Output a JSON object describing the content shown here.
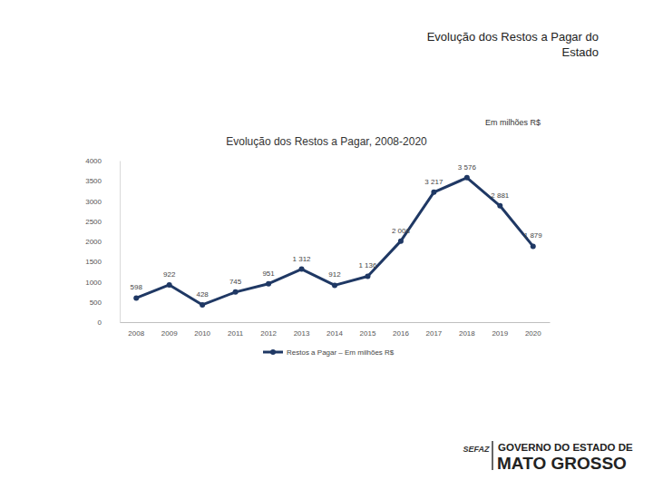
{
  "header": {
    "title_lines": [
      "Evolução dos Restos a Pagar do",
      "Estado"
    ],
    "unit_note": "Em milhões R$"
  },
  "chart_data": {
    "type": "line",
    "title": "Evolução dos Restos a Pagar, 2008-2020",
    "categories": [
      "2008",
      "2009",
      "2010",
      "2011",
      "2012",
      "2013",
      "2014",
      "2015",
      "2016",
      "2017",
      "2018",
      "2019",
      "2020"
    ],
    "series": [
      {
        "name": "Restos a Pagar – Em milhões R$",
        "color": "#1f3864",
        "marker": "circle",
        "line_style": "solid",
        "values": [
          598,
          922,
          428,
          745,
          951,
          1312,
          912,
          1136,
          2008,
          3217,
          3576,
          2881,
          1879
        ],
        "value_labels": [
          "598",
          "922",
          "428",
          "745",
          "951",
          "1 312",
          "912",
          "1 136",
          "2 008",
          "3 217",
          "3 576",
          "2 881",
          "1 879"
        ]
      }
    ],
    "ylim": [
      0,
      4000
    ],
    "yticks": [
      0,
      500,
      1000,
      1500,
      2000,
      2500,
      3000,
      3500,
      4000
    ],
    "grid": false,
    "data_labels": true,
    "legend": "bottom"
  },
  "footer": {
    "logo": {
      "agency": "SEFAZ",
      "government_line1": "GOVERNO DO ESTADO DE",
      "government_line2": "MATO GROSSO"
    }
  }
}
